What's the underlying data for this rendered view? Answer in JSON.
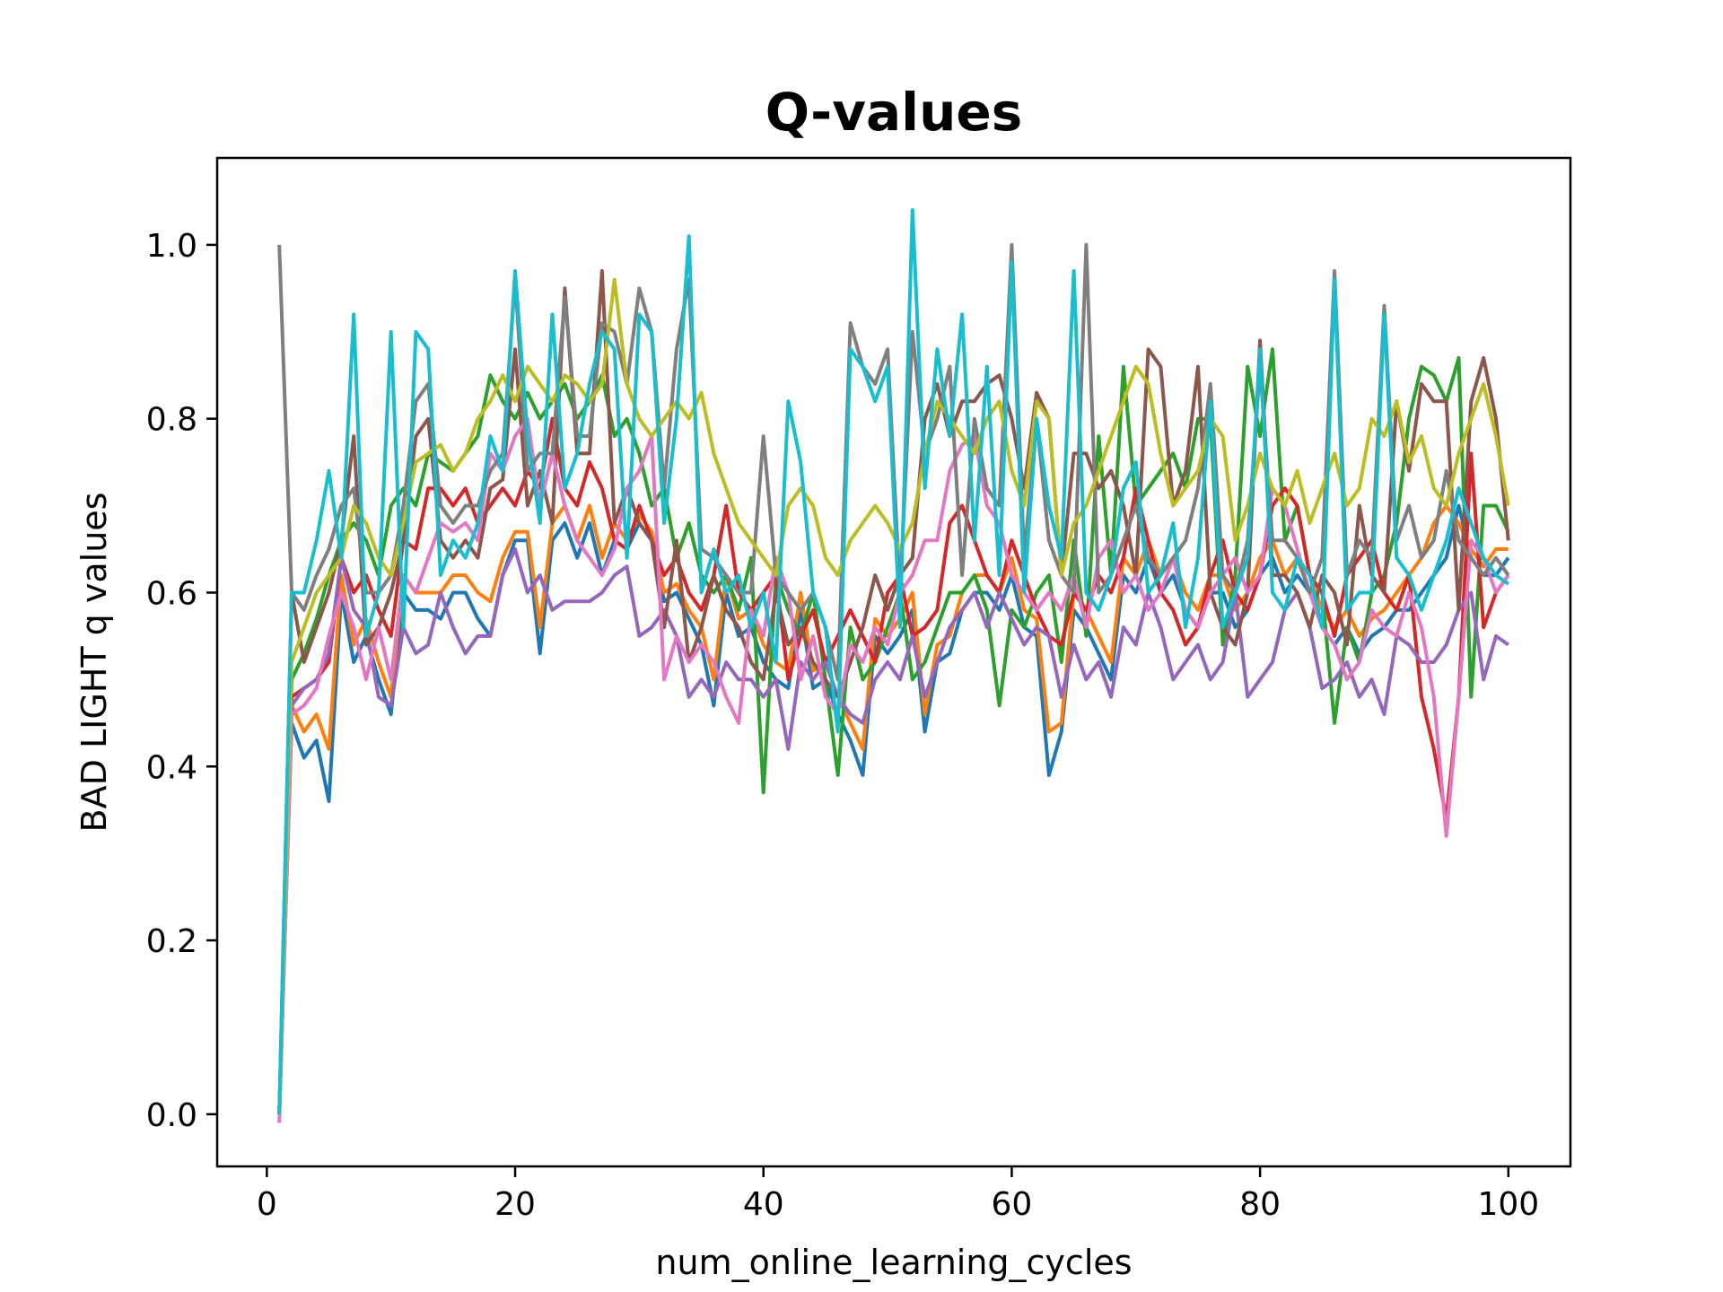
{
  "chart_data": {
    "type": "line",
    "title": "Q-values",
    "xlabel": "num_online_learning_cycles",
    "ylabel": "BAD LIGHT q values",
    "xlim": [
      -4,
      105
    ],
    "ylim": [
      -0.06,
      1.1
    ],
    "xticks": [
      0,
      20,
      40,
      60,
      80,
      100
    ],
    "yticks": [
      0.0,
      0.2,
      0.4,
      0.6,
      0.8,
      1.0
    ],
    "xtick_labels": [
      "0",
      "20",
      "40",
      "60",
      "80",
      "100"
    ],
    "ytick_labels": [
      "0.0",
      "0.2",
      "0.4",
      "0.6",
      "0.8",
      "1.0"
    ],
    "grid": false,
    "x_start": 1,
    "series": [
      {
        "color": "#1f77b4",
        "values": [
          0.0,
          0.45,
          0.41,
          0.43,
          0.36,
          0.6,
          0.52,
          0.55,
          0.5,
          0.46,
          0.6,
          0.58,
          0.58,
          0.57,
          0.6,
          0.6,
          0.57,
          0.55,
          0.62,
          0.66,
          0.66,
          0.53,
          0.66,
          0.68,
          0.64,
          0.68,
          0.62,
          0.66,
          0.65,
          0.68,
          0.66,
          0.59,
          0.6,
          0.57,
          0.54,
          0.47,
          0.6,
          0.55,
          0.56,
          0.52,
          0.5,
          0.49,
          0.58,
          0.49,
          0.5,
          0.46,
          0.43,
          0.39,
          0.55,
          0.53,
          0.55,
          0.58,
          0.44,
          0.52,
          0.53,
          0.58,
          0.6,
          0.6,
          0.58,
          0.62,
          0.56,
          0.55,
          0.39,
          0.44,
          0.58,
          0.56,
          0.53,
          0.5,
          0.62,
          0.6,
          0.64,
          0.6,
          0.62,
          0.58,
          0.56,
          0.6,
          0.6,
          0.56,
          0.58,
          0.62,
          0.64,
          0.6,
          0.62,
          0.6,
          0.56,
          0.54,
          0.56,
          0.53,
          0.55,
          0.56,
          0.58,
          0.58,
          0.6,
          0.62,
          0.64,
          0.7,
          0.64,
          0.62,
          0.62,
          0.64
        ]
      },
      {
        "color": "#ff7f0e",
        "values": [
          0.0,
          0.47,
          0.44,
          0.46,
          0.42,
          0.62,
          0.54,
          0.57,
          0.52,
          0.48,
          0.62,
          0.6,
          0.6,
          0.6,
          0.62,
          0.62,
          0.6,
          0.59,
          0.64,
          0.67,
          0.67,
          0.56,
          0.68,
          0.7,
          0.66,
          0.7,
          0.64,
          0.68,
          0.66,
          0.69,
          0.67,
          0.6,
          0.61,
          0.58,
          0.56,
          0.5,
          0.62,
          0.57,
          0.58,
          0.54,
          0.52,
          0.51,
          0.6,
          0.51,
          0.52,
          0.48,
          0.45,
          0.42,
          0.57,
          0.55,
          0.57,
          0.6,
          0.46,
          0.54,
          0.55,
          0.6,
          0.62,
          0.62,
          0.6,
          0.64,
          0.58,
          0.57,
          0.44,
          0.45,
          0.6,
          0.58,
          0.55,
          0.52,
          0.64,
          0.62,
          0.66,
          0.62,
          0.64,
          0.6,
          0.58,
          0.62,
          0.62,
          0.58,
          0.6,
          0.64,
          0.66,
          0.62,
          0.64,
          0.62,
          0.58,
          0.56,
          0.58,
          0.55,
          0.57,
          0.58,
          0.6,
          0.62,
          0.64,
          0.68,
          0.7,
          0.68,
          0.65,
          0.63,
          0.65,
          0.65
        ]
      },
      {
        "color": "#2ca02c",
        "values": [
          0.0,
          0.5,
          0.53,
          0.57,
          0.62,
          0.66,
          0.68,
          0.66,
          0.62,
          0.7,
          0.72,
          0.7,
          0.76,
          0.75,
          0.74,
          0.76,
          0.78,
          0.85,
          0.82,
          0.8,
          0.83,
          0.8,
          0.82,
          0.84,
          0.8,
          0.82,
          0.85,
          0.78,
          0.8,
          0.76,
          0.7,
          0.72,
          0.64,
          0.68,
          0.62,
          0.6,
          0.62,
          0.58,
          0.64,
          0.37,
          0.62,
          0.58,
          0.55,
          0.6,
          0.5,
          0.39,
          0.56,
          0.5,
          0.52,
          0.56,
          0.6,
          0.5,
          0.52,
          0.56,
          0.6,
          0.6,
          0.62,
          0.58,
          0.47,
          0.58,
          0.56,
          0.6,
          0.62,
          0.52,
          0.66,
          0.55,
          0.78,
          0.62,
          0.86,
          0.7,
          0.72,
          0.74,
          0.76,
          0.72,
          0.8,
          0.8,
          0.54,
          0.62,
          0.86,
          0.78,
          0.88,
          0.66,
          0.7,
          0.62,
          0.6,
          0.45,
          0.56,
          0.52,
          0.6,
          0.62,
          0.68,
          0.8,
          0.86,
          0.85,
          0.82,
          0.87,
          0.48,
          0.7,
          0.7,
          0.67
        ]
      },
      {
        "color": "#d62728",
        "values": [
          0.0,
          0.48,
          0.49,
          0.5,
          0.52,
          0.64,
          0.6,
          0.62,
          0.58,
          0.55,
          0.66,
          0.65,
          0.72,
          0.72,
          0.7,
          0.72,
          0.68,
          0.7,
          0.72,
          0.7,
          0.74,
          0.72,
          0.8,
          0.72,
          0.7,
          0.75,
          0.72,
          0.66,
          0.65,
          0.7,
          0.66,
          0.62,
          0.64,
          0.6,
          0.58,
          0.62,
          0.7,
          0.6,
          0.58,
          0.6,
          0.62,
          0.5,
          0.55,
          0.58,
          0.52,
          0.55,
          0.58,
          0.55,
          0.52,
          0.6,
          0.62,
          0.55,
          0.56,
          0.58,
          0.68,
          0.7,
          0.66,
          0.62,
          0.6,
          0.66,
          0.62,
          0.58,
          0.55,
          0.54,
          0.6,
          0.58,
          0.62,
          0.6,
          0.64,
          0.72,
          0.66,
          0.6,
          0.58,
          0.54,
          0.56,
          0.62,
          0.66,
          0.6,
          0.58,
          0.62,
          0.7,
          0.72,
          0.7,
          0.62,
          0.6,
          0.55,
          0.62,
          0.64,
          0.66,
          0.6,
          0.58,
          0.62,
          0.48,
          0.42,
          0.34,
          0.48,
          0.76,
          0.56,
          0.6,
          0.62
        ]
      },
      {
        "color": "#9467bd",
        "values": [
          0.0,
          0.47,
          0.49,
          0.5,
          0.53,
          0.64,
          0.58,
          0.56,
          0.48,
          0.47,
          0.56,
          0.53,
          0.54,
          0.6,
          0.56,
          0.53,
          0.55,
          0.55,
          0.62,
          0.65,
          0.6,
          0.62,
          0.58,
          0.59,
          0.59,
          0.59,
          0.6,
          0.62,
          0.63,
          0.55,
          0.56,
          0.58,
          0.55,
          0.48,
          0.5,
          0.48,
          0.52,
          0.5,
          0.5,
          0.48,
          0.5,
          0.42,
          0.52,
          0.5,
          0.52,
          0.48,
          0.46,
          0.45,
          0.5,
          0.52,
          0.5,
          0.55,
          0.48,
          0.52,
          0.56,
          0.58,
          0.6,
          0.56,
          0.6,
          0.57,
          0.54,
          0.56,
          0.55,
          0.48,
          0.54,
          0.5,
          0.52,
          0.48,
          0.56,
          0.54,
          0.6,
          0.56,
          0.5,
          0.52,
          0.54,
          0.5,
          0.52,
          0.6,
          0.48,
          0.5,
          0.52,
          0.58,
          0.6,
          0.56,
          0.49,
          0.5,
          0.52,
          0.48,
          0.5,
          0.46,
          0.55,
          0.54,
          0.52,
          0.52,
          0.54,
          0.58,
          0.6,
          0.5,
          0.55,
          0.54
        ]
      },
      {
        "color": "#8c564b",
        "values": [
          0.0,
          0.6,
          0.52,
          0.56,
          0.6,
          0.66,
          0.78,
          0.54,
          0.56,
          0.6,
          0.66,
          0.78,
          0.8,
          0.66,
          0.64,
          0.66,
          0.64,
          0.72,
          0.73,
          0.88,
          0.7,
          0.74,
          0.68,
          0.95,
          0.76,
          0.76,
          0.97,
          0.68,
          0.72,
          0.68,
          0.66,
          0.56,
          0.66,
          0.52,
          0.56,
          0.62,
          0.58,
          0.56,
          0.52,
          0.5,
          0.6,
          0.54,
          0.56,
          0.52,
          0.5,
          0.48,
          0.52,
          0.56,
          0.62,
          0.58,
          0.62,
          0.64,
          0.8,
          0.84,
          0.78,
          0.82,
          0.82,
          0.84,
          0.85,
          0.8,
          0.72,
          0.83,
          0.8,
          0.62,
          0.76,
          0.76,
          0.72,
          0.74,
          0.7,
          0.62,
          0.88,
          0.86,
          0.7,
          0.74,
          0.86,
          0.6,
          0.56,
          0.54,
          0.6,
          0.89,
          0.62,
          0.62,
          0.6,
          0.56,
          0.62,
          0.6,
          0.54,
          0.7,
          0.62,
          0.6,
          0.82,
          0.74,
          0.84,
          0.82,
          0.82,
          0.58,
          0.82,
          0.87,
          0.8,
          0.66
        ]
      },
      {
        "color": "#e377c2",
        "values": [
          -0.01,
          0.46,
          0.47,
          0.49,
          0.55,
          0.6,
          0.56,
          0.5,
          0.56,
          0.5,
          0.62,
          0.6,
          0.64,
          0.68,
          0.67,
          0.68,
          0.66,
          0.76,
          0.74,
          0.78,
          0.8,
          0.7,
          0.76,
          0.7,
          0.66,
          0.64,
          0.62,
          0.65,
          0.72,
          0.74,
          0.78,
          0.5,
          0.55,
          0.52,
          0.54,
          0.52,
          0.48,
          0.45,
          0.58,
          0.55,
          0.64,
          0.6,
          0.5,
          0.55,
          0.48,
          0.46,
          0.54,
          0.52,
          0.56,
          0.54,
          0.6,
          0.62,
          0.66,
          0.66,
          0.74,
          0.77,
          0.78,
          0.7,
          0.68,
          0.62,
          0.6,
          0.58,
          0.6,
          0.58,
          0.62,
          0.56,
          0.64,
          0.66,
          0.6,
          0.62,
          0.58,
          0.6,
          0.64,
          0.58,
          0.56,
          0.6,
          0.62,
          0.64,
          0.6,
          0.62,
          0.72,
          0.7,
          0.65,
          0.6,
          0.56,
          0.54,
          0.5,
          0.52,
          0.58,
          0.56,
          0.55,
          0.6,
          0.56,
          0.48,
          0.32,
          0.48,
          0.66,
          0.64,
          0.6,
          0.62
        ]
      },
      {
        "color": "#7f7f7f",
        "values": [
          1.0,
          0.6,
          0.58,
          0.62,
          0.65,
          0.7,
          0.72,
          0.6,
          0.6,
          0.62,
          0.7,
          0.82,
          0.84,
          0.7,
          0.68,
          0.7,
          0.7,
          0.74,
          0.76,
          0.96,
          0.74,
          0.76,
          0.76,
          0.94,
          0.78,
          0.78,
          0.91,
          0.9,
          0.84,
          0.95,
          0.9,
          0.72,
          0.88,
          0.96,
          0.65,
          0.64,
          0.62,
          0.6,
          0.6,
          0.78,
          0.62,
          0.6,
          0.58,
          0.6,
          0.56,
          0.5,
          0.91,
          0.86,
          0.84,
          0.88,
          0.6,
          0.9,
          0.76,
          0.8,
          0.86,
          0.62,
          0.8,
          0.72,
          0.7,
          1.0,
          0.64,
          0.8,
          0.66,
          0.62,
          0.6,
          1.0,
          0.6,
          0.62,
          0.66,
          0.7,
          0.64,
          0.62,
          0.64,
          0.66,
          0.72,
          0.84,
          0.62,
          0.6,
          0.66,
          0.86,
          0.66,
          0.66,
          0.64,
          0.6,
          0.64,
          0.97,
          0.62,
          0.66,
          0.64,
          0.93,
          0.66,
          0.7,
          0.64,
          0.66,
          0.74,
          0.66,
          0.64,
          0.62,
          0.64,
          0.62
        ]
      },
      {
        "color": "#bcbd22",
        "values": [
          0.0,
          0.52,
          0.56,
          0.6,
          0.62,
          0.64,
          0.7,
          0.68,
          0.64,
          0.62,
          0.68,
          0.75,
          0.76,
          0.77,
          0.74,
          0.76,
          0.8,
          0.82,
          0.85,
          0.82,
          0.86,
          0.84,
          0.82,
          0.85,
          0.84,
          0.82,
          0.84,
          0.96,
          0.84,
          0.8,
          0.78,
          0.8,
          0.82,
          0.8,
          0.83,
          0.76,
          0.72,
          0.68,
          0.66,
          0.64,
          0.62,
          0.7,
          0.72,
          0.7,
          0.64,
          0.62,
          0.66,
          0.68,
          0.7,
          0.68,
          0.65,
          0.68,
          0.76,
          0.82,
          0.8,
          0.78,
          0.76,
          0.8,
          0.82,
          0.74,
          0.7,
          0.82,
          0.8,
          0.62,
          0.68,
          0.7,
          0.74,
          0.78,
          0.82,
          0.86,
          0.84,
          0.76,
          0.7,
          0.72,
          0.74,
          0.8,
          0.78,
          0.66,
          0.7,
          0.76,
          0.72,
          0.7,
          0.74,
          0.68,
          0.72,
          0.76,
          0.7,
          0.72,
          0.8,
          0.78,
          0.82,
          0.75,
          0.78,
          0.72,
          0.7,
          0.76,
          0.8,
          0.84,
          0.78,
          0.7
        ]
      },
      {
        "color": "#17becf",
        "values": [
          0.0,
          0.6,
          0.6,
          0.66,
          0.74,
          0.64,
          0.92,
          0.55,
          0.6,
          0.9,
          0.56,
          0.9,
          0.88,
          0.62,
          0.66,
          0.64,
          0.68,
          0.78,
          0.74,
          0.97,
          0.78,
          0.68,
          0.92,
          0.72,
          0.76,
          0.84,
          0.9,
          0.88,
          0.64,
          0.92,
          0.9,
          0.68,
          0.8,
          1.01,
          0.6,
          0.65,
          0.6,
          0.62,
          0.56,
          0.6,
          0.52,
          0.82,
          0.75,
          0.6,
          0.56,
          0.44,
          0.88,
          0.86,
          0.82,
          0.86,
          0.56,
          1.04,
          0.72,
          0.88,
          0.78,
          0.92,
          0.66,
          0.86,
          0.62,
          0.98,
          0.6,
          0.8,
          0.7,
          0.64,
          0.97,
          0.6,
          0.58,
          0.62,
          0.72,
          0.75,
          0.6,
          0.62,
          0.68,
          0.56,
          0.64,
          0.82,
          0.56,
          0.6,
          0.64,
          0.88,
          0.6,
          0.58,
          0.64,
          0.62,
          0.56,
          0.96,
          0.58,
          0.6,
          0.6,
          0.92,
          0.64,
          0.62,
          0.58,
          0.62,
          0.66,
          0.72,
          0.68,
          0.64,
          0.62,
          0.61
        ]
      }
    ]
  }
}
